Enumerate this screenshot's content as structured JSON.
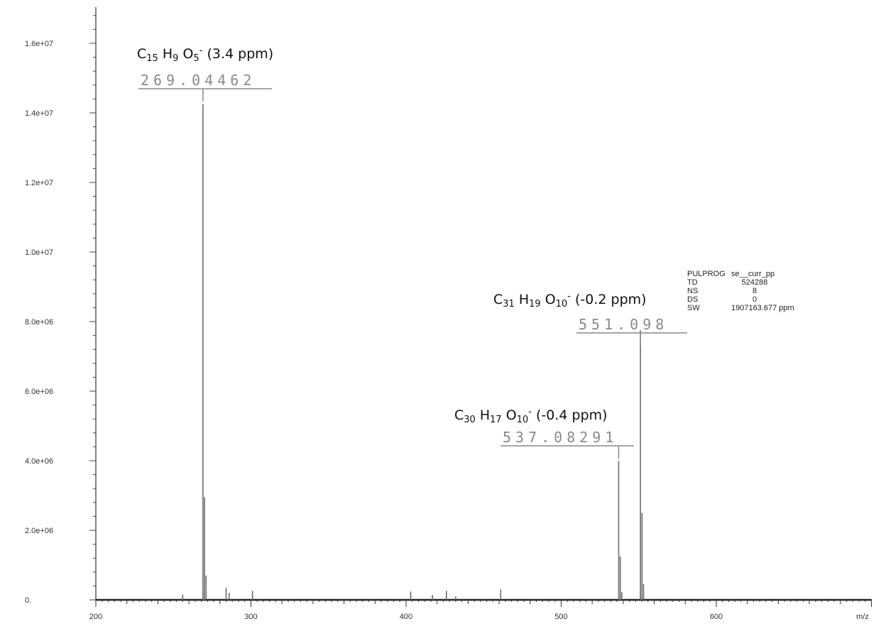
{
  "chart_data": {
    "type": "line",
    "x_axis": {
      "range": [
        200,
        750
      ],
      "tick_labels": [
        "200",
        "300",
        "400",
        "500",
        "600"
      ],
      "tick_values": [
        200,
        300,
        400,
        500,
        600
      ],
      "unit_label": "m/z"
    },
    "y_axis": {
      "range": [
        0,
        17000000
      ],
      "tick_labels": [
        "0.",
        "2.0e+06",
        "4.0e+06",
        "6.0e+06",
        "8.0e+06",
        "1.0e+07",
        "1.2e+07",
        "1.4e+07",
        "1.6e+07"
      ],
      "tick_values": [
        0,
        2000000,
        4000000,
        6000000,
        8000000,
        10000000,
        12000000,
        14000000,
        16000000
      ]
    },
    "grid": false,
    "peaks": [
      {
        "mz": 256.0,
        "intensity": 150000
      },
      {
        "mz": 269.04462,
        "intensity": 14250000
      },
      {
        "mz": 270.05,
        "intensity": 2950000
      },
      {
        "mz": 271.05,
        "intensity": 700000
      },
      {
        "mz": 284.0,
        "intensity": 350000
      },
      {
        "mz": 286.0,
        "intensity": 200000
      },
      {
        "mz": 301.0,
        "intensity": 260000
      },
      {
        "mz": 403.0,
        "intensity": 240000
      },
      {
        "mz": 417.0,
        "intensity": 140000
      },
      {
        "mz": 426.0,
        "intensity": 260000
      },
      {
        "mz": 432.0,
        "intensity": 100000
      },
      {
        "mz": 461.0,
        "intensity": 300000
      },
      {
        "mz": 537.08291,
        "intensity": 4000000
      },
      {
        "mz": 538.09,
        "intensity": 1250000
      },
      {
        "mz": 539.09,
        "intensity": 220000
      },
      {
        "mz": 551.098,
        "intensity": 7750000
      },
      {
        "mz": 552.1,
        "intensity": 2500000
      },
      {
        "mz": 553.1,
        "intensity": 450000
      }
    ],
    "annotations": [
      {
        "mz": 269.04462,
        "mass_label": "269.04462",
        "formula": [
          {
            "t": "C",
            "s": "n"
          },
          {
            "t": "15",
            "s": "sub"
          },
          {
            "t": " H",
            "s": "n"
          },
          {
            "t": "9",
            "s": "sub"
          },
          {
            "t": " O",
            "s": "n"
          },
          {
            "t": "5",
            "s": "sub"
          },
          {
            "t": "-",
            "s": "sup"
          },
          {
            "t": " (3.4 ppm)",
            "s": "n"
          }
        ]
      },
      {
        "mz": 551.098,
        "mass_label": "551.098",
        "formula": [
          {
            "t": "C",
            "s": "n"
          },
          {
            "t": "31",
            "s": "sub"
          },
          {
            "t": " H",
            "s": "n"
          },
          {
            "t": "19",
            "s": "sub"
          },
          {
            "t": " O",
            "s": "n"
          },
          {
            "t": "10",
            "s": "sub"
          },
          {
            "t": "-",
            "s": "sup"
          },
          {
            "t": " (-0.2 ppm)",
            "s": "n"
          }
        ]
      },
      {
        "mz": 537.08291,
        "mass_label": "537.08291",
        "formula": [
          {
            "t": "C",
            "s": "n"
          },
          {
            "t": "30",
            "s": "sub"
          },
          {
            "t": " H",
            "s": "n"
          },
          {
            "t": "17",
            "s": "sub"
          },
          {
            "t": " O",
            "s": "n"
          },
          {
            "t": "10",
            "s": "sub"
          },
          {
            "t": "-",
            "s": "sup"
          },
          {
            "t": " (-0.4 ppm)",
            "s": "n"
          }
        ]
      }
    ],
    "parameters": [
      {
        "name": "PULPROG",
        "value": "se__curr_pp"
      },
      {
        "name": "TD",
        "value": "524288"
      },
      {
        "name": "NS",
        "value": "8"
      },
      {
        "name": "DS",
        "value": "0"
      },
      {
        "name": "SW",
        "value": "1907163.677 ppm"
      }
    ]
  }
}
